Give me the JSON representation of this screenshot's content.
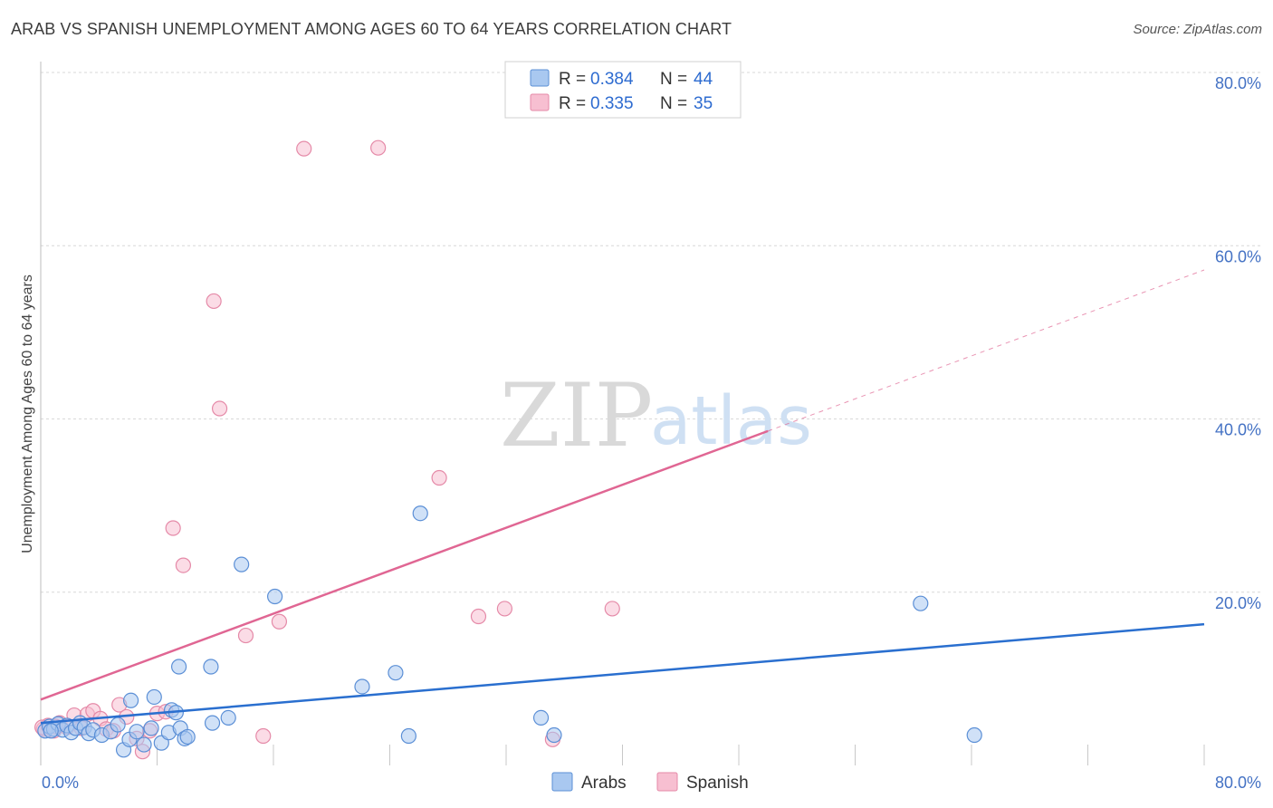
{
  "title": "ARAB VS SPANISH UNEMPLOYMENT AMONG AGES 60 TO 64 YEARS CORRELATION CHART",
  "source": "Source: ZipAtlas.com",
  "watermark": {
    "zip": "ZIP",
    "atlas": "atlas"
  },
  "colors": {
    "arabs_fill": "#a9c8f0",
    "arabs_stroke": "#5b8fd6",
    "arabs_line": "#2a6fcf",
    "spanish_fill": "#f7bfd1",
    "spanish_stroke": "#e58aa8",
    "spanish_line": "#e06693",
    "tick": "#4472c4",
    "grid": "#d8d8d8"
  },
  "legend": {
    "arabs": {
      "r_label": "R =",
      "r_value": "0.384",
      "n_label": "N =",
      "n_value": "44"
    },
    "spanish": {
      "r_label": "R =",
      "r_value": "0.335",
      "n_label": "N =",
      "n_value": "35"
    }
  },
  "chart_data": {
    "type": "scatter",
    "title": "ARAB VS SPANISH UNEMPLOYMENT AMONG AGES 60 TO 64 YEARS CORRELATION CHART",
    "xlabel": "",
    "ylabel": "Unemployment Among Ages 60 to 64 years",
    "xlim": [
      0,
      80
    ],
    "ylim": [
      0,
      80
    ],
    "x_tick_labels": {
      "min": "0.0%",
      "max": "80.0%"
    },
    "y_ticks": [
      20,
      40,
      60,
      80
    ],
    "y_tick_labels": [
      "20.0%",
      "40.0%",
      "60.0%",
      "80.0%"
    ],
    "x_grid_ticks": [
      8,
      16,
      24,
      32,
      40,
      48,
      56,
      64,
      72,
      80
    ],
    "grid": true,
    "series": [
      {
        "name": "Arabs",
        "points": [
          [
            0.3,
            4.0
          ],
          [
            0.6,
            4.5
          ],
          [
            0.9,
            4.2
          ],
          [
            1.2,
            4.8
          ],
          [
            1.5,
            4.1
          ],
          [
            1.8,
            4.6
          ],
          [
            2.1,
            3.8
          ],
          [
            2.4,
            4.3
          ],
          [
            2.7,
            4.9
          ],
          [
            3.0,
            4.4
          ],
          [
            3.3,
            3.7
          ],
          [
            3.6,
            4.1
          ],
          [
            4.2,
            3.5
          ],
          [
            4.8,
            3.9
          ],
          [
            5.3,
            4.7
          ],
          [
            5.7,
            1.8
          ],
          [
            6.1,
            3.0
          ],
          [
            6.6,
            3.9
          ],
          [
            7.1,
            2.4
          ],
          [
            7.8,
            7.9
          ],
          [
            6.2,
            7.5
          ],
          [
            7.6,
            4.3
          ],
          [
            8.3,
            2.6
          ],
          [
            8.8,
            3.8
          ],
          [
            9.0,
            6.4
          ],
          [
            9.3,
            6.1
          ],
          [
            9.6,
            4.3
          ],
          [
            9.9,
            3.1
          ],
          [
            10.1,
            3.3
          ],
          [
            11.8,
            4.9
          ],
          [
            12.9,
            5.5
          ],
          [
            9.5,
            11.4
          ],
          [
            13.8,
            23.2
          ],
          [
            11.7,
            11.4
          ],
          [
            16.1,
            19.5
          ],
          [
            22.1,
            9.1
          ],
          [
            24.4,
            10.7
          ],
          [
            25.3,
            3.4
          ],
          [
            26.1,
            29.1
          ],
          [
            34.4,
            5.5
          ],
          [
            35.3,
            3.5
          ],
          [
            60.5,
            18.7
          ],
          [
            64.2,
            3.5
          ],
          [
            0.7,
            4.0
          ]
        ],
        "trendline": {
          "x": [
            0,
            80
          ],
          "y": [
            4.9,
            16.3
          ]
        }
      },
      {
        "name": "Spanish",
        "points": [
          [
            0.2,
            4.2
          ],
          [
            0.5,
            4.6
          ],
          [
            0.9,
            4.0
          ],
          [
            1.3,
            4.9
          ],
          [
            1.8,
            4.4
          ],
          [
            2.3,
            5.8
          ],
          [
            2.8,
            4.3
          ],
          [
            3.2,
            5.9
          ],
          [
            3.6,
            6.3
          ],
          [
            4.1,
            5.4
          ],
          [
            4.5,
            4.2
          ],
          [
            5.0,
            4.0
          ],
          [
            5.4,
            7.0
          ],
          [
            5.9,
            5.6
          ],
          [
            6.6,
            3.1
          ],
          [
            7.0,
            1.6
          ],
          [
            7.5,
            4.0
          ],
          [
            8.0,
            6.0
          ],
          [
            8.6,
            6.2
          ],
          [
            9.1,
            27.4
          ],
          [
            9.8,
            23.1
          ],
          [
            11.9,
            53.6
          ],
          [
            12.3,
            41.2
          ],
          [
            14.1,
            15.0
          ],
          [
            15.3,
            3.4
          ],
          [
            16.4,
            16.6
          ],
          [
            18.1,
            71.2
          ],
          [
            23.2,
            71.3
          ],
          [
            27.4,
            33.2
          ],
          [
            30.1,
            17.2
          ],
          [
            31.9,
            18.1
          ],
          [
            39.3,
            18.1
          ],
          [
            35.2,
            3.0
          ],
          [
            0.1,
            4.4
          ],
          [
            1.0,
            4.5
          ]
        ],
        "trendline": {
          "x": [
            0,
            50
          ],
          "y": [
            7.6,
            38.6
          ]
        },
        "trendline_extension": {
          "x": [
            50,
            80
          ],
          "y": [
            38.6,
            57.2
          ]
        }
      }
    ]
  },
  "bottom_legend": [
    {
      "label": "Arabs"
    },
    {
      "label": "Spanish"
    }
  ]
}
